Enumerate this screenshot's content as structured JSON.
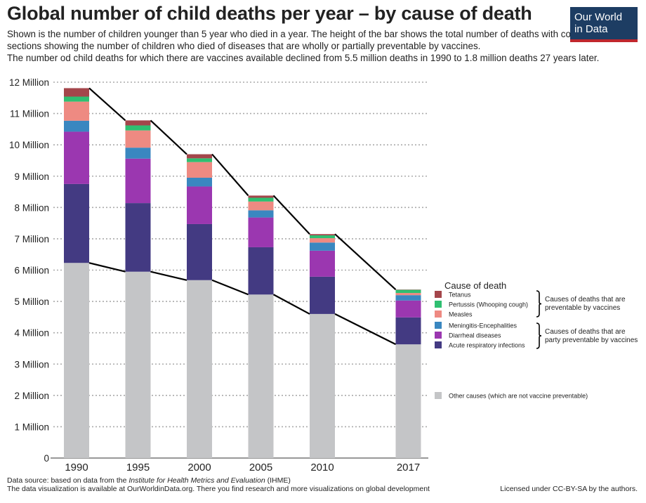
{
  "header": {
    "title": "Global number of child deaths per year – by cause of death",
    "subtitle_lines": [
      "Shown is the number of children younger than 5 year who died in a year. The height of the bar shows the total number of deaths with colored",
      "sections showing the number of children who died of diseases that are wholly or partially preventable by vaccines.",
      "The number od child deaths for which there are vaccines available declined from 5.5 million deaths in 1990 to 1.8 million deaths 27 years later."
    ],
    "logo": {
      "line1": "Our World",
      "line2": "in Data"
    }
  },
  "footer": {
    "source_prefix": "Data source: based on data from the ",
    "source_italic": "Institute for Health Metrics and Evaluation",
    "source_suffix": " (IHME)",
    "line2": "The data visualization is available at OurWorldinData.org. There you find research and more visualizations on global development",
    "license": "Licensed under CC-BY-SA by the authors."
  },
  "chart_data": {
    "type": "bar",
    "stacked": true,
    "categories": [
      "1990",
      "1995",
      "2000",
      "2005",
      "2010",
      "2017"
    ],
    "x_years": [
      1990,
      1995,
      2000,
      2005,
      2010,
      2017
    ],
    "ylim": [
      0,
      12
    ],
    "yticks": [
      0,
      1,
      2,
      3,
      4,
      5,
      6,
      7,
      8,
      9,
      10,
      11,
      12
    ],
    "ytick_labels": [
      "0",
      "1 Million",
      "2 Million",
      "3 Million",
      "4 Million",
      "5 Million",
      "6 Million",
      "7 Million",
      "8 Million",
      "9 Million",
      "10 Million",
      "11 Million",
      "12 Million"
    ],
    "grid": "horizontal dotted",
    "unit": "million deaths",
    "legend": {
      "title": "Cause of death",
      "placement": "right",
      "group1": "Causes of deaths that are preventable by vaccines",
      "group1_lines": [
        "Causes of deaths that are",
        "preventable by vaccines"
      ],
      "group2_lines": [
        "Causes of deaths that are",
        "party preventable by vaccines"
      ]
    },
    "series": [
      {
        "name": "Other causes (which are not vaccine preventable)",
        "color": "#c4c5c7",
        "values": [
          6.23,
          5.95,
          5.68,
          5.22,
          4.6,
          3.63
        ]
      },
      {
        "name": "Acute respiratory infections",
        "color": "#433a82",
        "values": [
          2.52,
          2.19,
          1.79,
          1.51,
          1.19,
          0.86
        ]
      },
      {
        "name": "Diarrheal diseases",
        "color": "#9b37b0",
        "values": [
          1.67,
          1.42,
          1.2,
          0.95,
          0.83,
          0.54
        ]
      },
      {
        "name": "Meningitis-Encephalities",
        "color": "#3a87c0",
        "values": [
          0.35,
          0.35,
          0.28,
          0.23,
          0.26,
          0.17
        ]
      },
      {
        "name": "Measles",
        "color": "#ee8a82",
        "values": [
          0.61,
          0.55,
          0.5,
          0.28,
          0.14,
          0.07
        ]
      },
      {
        "name": "Pertussis (Whooping cough)",
        "color": "#2fbf71",
        "values": [
          0.16,
          0.16,
          0.12,
          0.12,
          0.09,
          0.1
        ]
      },
      {
        "name": "Tetanus",
        "color": "#a4464b",
        "values": [
          0.27,
          0.16,
          0.13,
          0.07,
          0.04,
          0.01
        ]
      }
    ],
    "connector_lines": [
      "total deaths",
      "other causes"
    ]
  }
}
